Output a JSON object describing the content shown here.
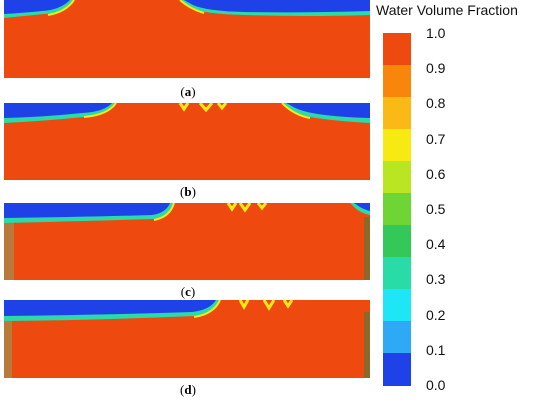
{
  "legend": {
    "title": "Water Volume Fraction",
    "ticks": [
      "1.0",
      "0.9",
      "0.8",
      "0.7",
      "0.6",
      "0.5",
      "0.4",
      "0.3",
      "0.2",
      "0.1",
      "0.0"
    ],
    "colors": [
      "#ee4a10",
      "#f7860a",
      "#fbb915",
      "#f6ea12",
      "#b9e620",
      "#6fd534",
      "#33c857",
      "#29dba7",
      "#1ee6f4",
      "#2ea9f5",
      "#1f42e8"
    ]
  },
  "captions": {
    "a": {
      "open": "(",
      "letter": "a",
      "close": ")"
    },
    "b": {
      "open": "(",
      "letter": "b",
      "close": ")"
    },
    "c": {
      "open": "(",
      "letter": "c",
      "close": ")"
    },
    "d": {
      "open": "(",
      "letter": "d",
      "close": ")"
    }
  },
  "colors": {
    "water": "#ee4a10",
    "air": "#1f42e8",
    "interface_light": "#29dba7",
    "interface_yellow": "#f6ea12",
    "wall": "#c9b8d8",
    "wall_dark": "#8a6a2a"
  }
}
